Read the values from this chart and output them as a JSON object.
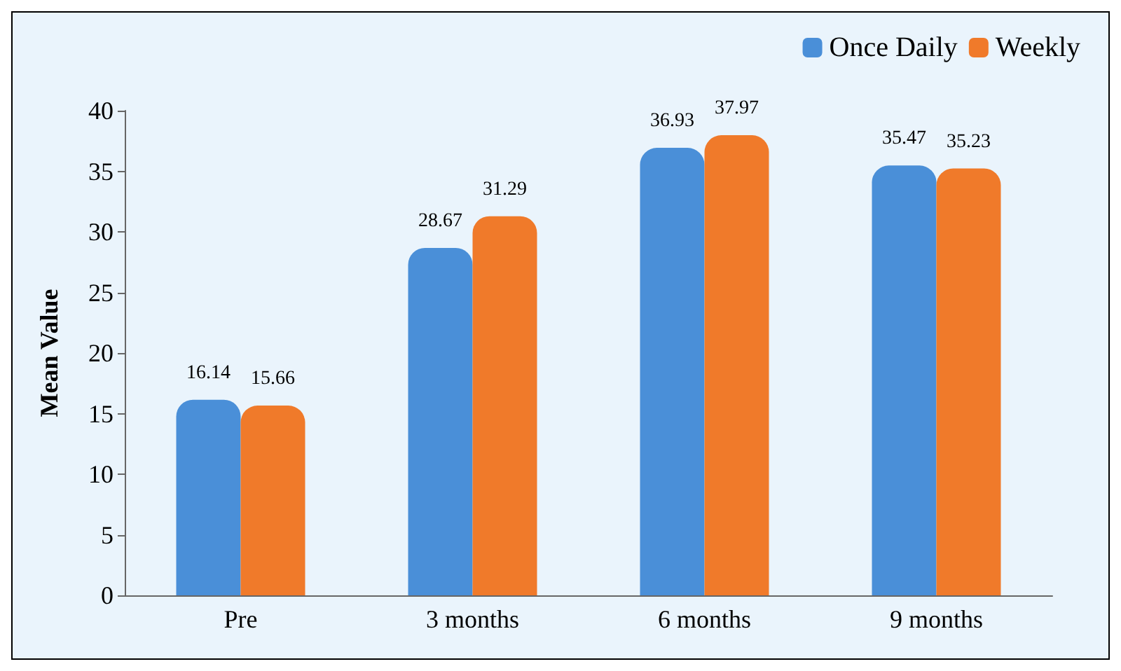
{
  "chart_data": {
    "type": "bar",
    "ylabel": "Mean Value",
    "categories": [
      "Pre",
      "3 months",
      "6 months",
      "9 months"
    ],
    "series": [
      {
        "name": "Once Daily",
        "color": "#4a8fd8",
        "values": [
          16.14,
          28.67,
          36.93,
          35.47
        ]
      },
      {
        "name": "Weekly",
        "color": "#f07a2a",
        "values": [
          15.66,
          31.29,
          37.97,
          35.23
        ]
      }
    ],
    "ylim": [
      0,
      40
    ],
    "yticks": [
      0,
      5,
      10,
      15,
      20,
      25,
      30,
      35,
      40
    ],
    "grid": false,
    "legend": "top right",
    "data_labels": true
  }
}
